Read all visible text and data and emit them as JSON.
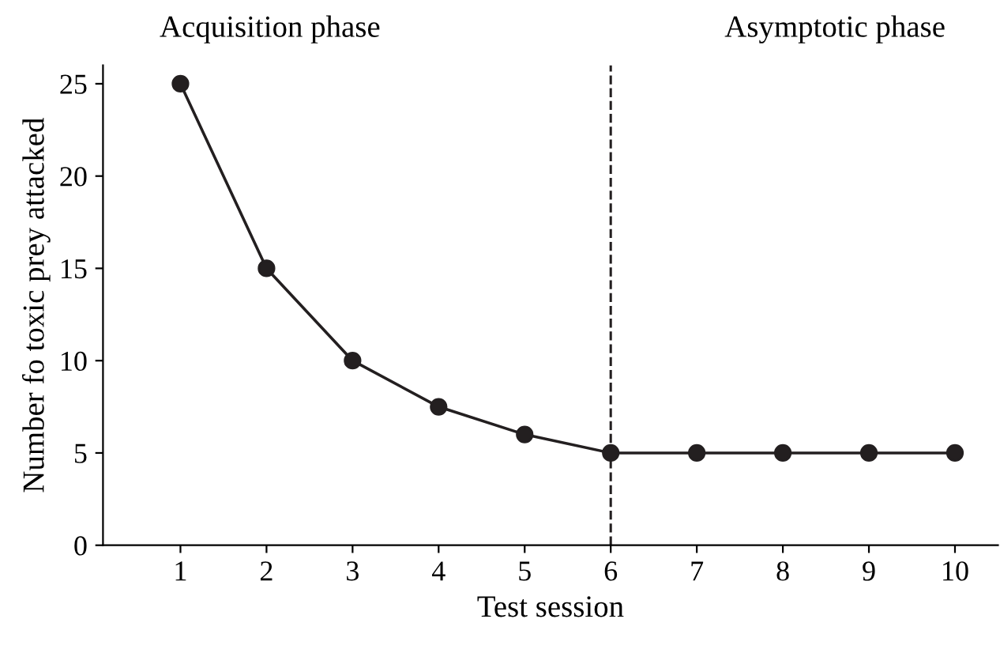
{
  "chart_data": {
    "type": "line",
    "xlabel": "Test session",
    "ylabel": "Number fo toxic prey attacked",
    "x": [
      1,
      2,
      3,
      4,
      5,
      6,
      7,
      8,
      9,
      10
    ],
    "values": [
      25,
      15,
      10,
      7.5,
      6,
      5,
      5,
      5,
      5,
      5
    ],
    "color": "#231f20",
    "xlim": [
      0.1,
      10.5
    ],
    "xticks": [
      1,
      2,
      3,
      4,
      5,
      6,
      7,
      8,
      9,
      10
    ],
    "ylim": [
      0,
      26
    ],
    "yticks": [
      0,
      5,
      10,
      15,
      20,
      25
    ],
    "marker": "circle",
    "line_style": "solid",
    "grid": false,
    "legend": false,
    "ref_lines": [
      {
        "axis": "x",
        "value": 6,
        "line_style": "dashed"
      }
    ],
    "annotations": [
      "Acquisition phase",
      "Asymptotic phase"
    ]
  }
}
